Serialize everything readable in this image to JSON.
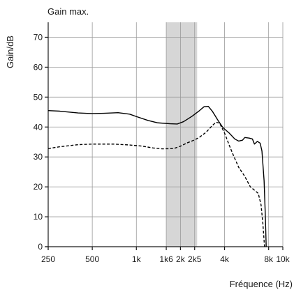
{
  "chart_data": {
    "type": "line",
    "title": "Gain max.",
    "xlabel": "Fréquence (Hz)",
    "ylabel": "Gain/dB",
    "xscale": "log",
    "xlim": [
      250,
      10000
    ],
    "ylim": [
      0,
      75
    ],
    "grid": true,
    "x_ticks": [
      {
        "value": 250,
        "label": "250"
      },
      {
        "value": 500,
        "label": "500"
      },
      {
        "value": 1000,
        "label": "1k"
      },
      {
        "value": 1600,
        "label": "1k6"
      },
      {
        "value": 2000,
        "label": "2k"
      },
      {
        "value": 2500,
        "label": "2k5"
      },
      {
        "value": 4000,
        "label": "4k"
      },
      {
        "value": 8000,
        "label": "8k"
      },
      {
        "value": 10000,
        "label": "10k"
      }
    ],
    "y_ticks": [
      {
        "value": 0,
        "label": "0"
      },
      {
        "value": 10,
        "label": "10"
      },
      {
        "value": 20,
        "label": "20"
      },
      {
        "value": 30,
        "label": "30"
      },
      {
        "value": 40,
        "label": "40"
      },
      {
        "value": 50,
        "label": "50"
      },
      {
        "value": 60,
        "label": "60"
      },
      {
        "value": 70,
        "label": "70"
      }
    ],
    "shaded_band": {
      "from": 1600,
      "to": 2600,
      "color": "#d6d6d6"
    },
    "series": [
      {
        "style": "solid",
        "color": "#000000",
        "points": [
          [
            250,
            45.5
          ],
          [
            300,
            45.3
          ],
          [
            400,
            44.7
          ],
          [
            500,
            44.5
          ],
          [
            600,
            44.6
          ],
          [
            750,
            44.8
          ],
          [
            900,
            44.3
          ],
          [
            1000,
            43.5
          ],
          [
            1200,
            42.2
          ],
          [
            1400,
            41.4
          ],
          [
            1700,
            41.1
          ],
          [
            1900,
            41.0
          ],
          [
            2100,
            41.8
          ],
          [
            2400,
            43.6
          ],
          [
            2700,
            45.5
          ],
          [
            2900,
            46.8
          ],
          [
            3100,
            46.9
          ],
          [
            3300,
            45.3
          ],
          [
            3600,
            42.3
          ],
          [
            3900,
            39.8
          ],
          [
            4300,
            38.0
          ],
          [
            4700,
            36.0
          ],
          [
            5000,
            35.3
          ],
          [
            5300,
            35.6
          ],
          [
            5500,
            36.5
          ],
          [
            5900,
            36.3
          ],
          [
            6200,
            36.0
          ],
          [
            6400,
            34.3
          ],
          [
            6700,
            35.2
          ],
          [
            7000,
            34.6
          ],
          [
            7200,
            32.0
          ],
          [
            7450,
            22.0
          ],
          [
            7600,
            10.0
          ],
          [
            7700,
            0.0
          ]
        ]
      },
      {
        "style": "dashed",
        "color": "#000000",
        "points": [
          [
            250,
            32.8
          ],
          [
            300,
            33.4
          ],
          [
            400,
            34.1
          ],
          [
            500,
            34.3
          ],
          [
            700,
            34.3
          ],
          [
            900,
            34.0
          ],
          [
            1100,
            33.6
          ],
          [
            1300,
            33.0
          ],
          [
            1500,
            32.7
          ],
          [
            1800,
            32.8
          ],
          [
            2000,
            33.6
          ],
          [
            2200,
            34.6
          ],
          [
            2500,
            35.7
          ],
          [
            2700,
            36.6
          ],
          [
            3000,
            38.3
          ],
          [
            3300,
            40.5
          ],
          [
            3500,
            41.6
          ],
          [
            3700,
            41.3
          ],
          [
            4000,
            38.0
          ],
          [
            4300,
            34.0
          ],
          [
            4600,
            30.5
          ],
          [
            5000,
            26.5
          ],
          [
            5500,
            23.5
          ],
          [
            6000,
            20.0
          ],
          [
            6400,
            18.9
          ],
          [
            6800,
            17.8
          ],
          [
            7100,
            14.0
          ],
          [
            7300,
            8.0
          ],
          [
            7500,
            0.0
          ]
        ]
      }
    ]
  }
}
